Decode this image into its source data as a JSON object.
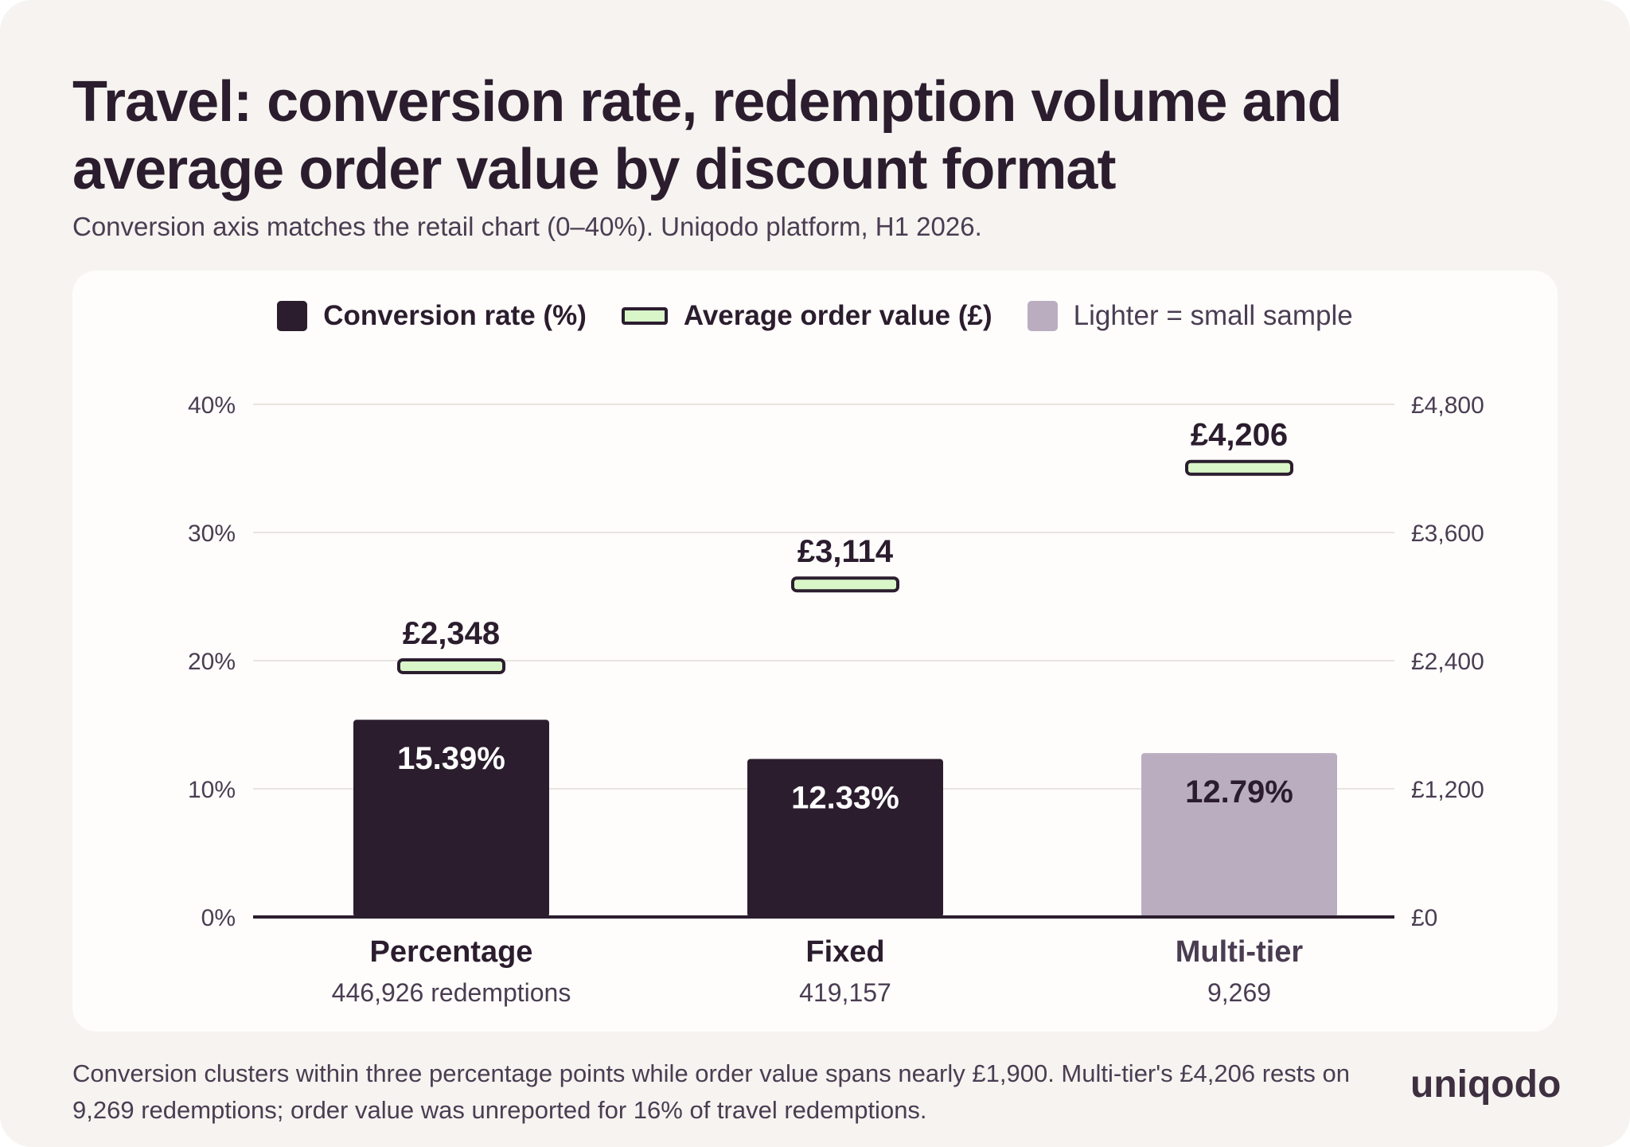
{
  "title": "Travel: conversion rate, redemption volume and average order value by discount format",
  "subtitle": "Conversion axis matches the retail chart (0–40%). Uniqodo platform, H1 2026.",
  "legend": [
    {
      "label": "Conversion rate (%)",
      "kind": "bar",
      "color": "#2b1d2e"
    },
    {
      "label": "Average order value (£)",
      "kind": "marker",
      "color": "#d9f6c9"
    },
    {
      "label": "Lighter = small sample",
      "kind": "bar",
      "color": "#bbadc0"
    }
  ],
  "chart_data": {
    "type": "bar",
    "categories": [
      "Percentage",
      "Fixed",
      "Multi-tier"
    ],
    "sublabels": [
      "446,926 redemptions",
      "419,157",
      "9,269"
    ],
    "series": [
      {
        "name": "Conversion rate (%)",
        "axis": "left",
        "values": [
          15.39,
          12.33,
          12.79
        ],
        "value_labels": [
          "15.39%",
          "12.33%",
          "12.79%"
        ],
        "small_sample": [
          false,
          false,
          true
        ]
      },
      {
        "name": "Average order value (£)",
        "axis": "right",
        "mark": "marker",
        "values": [
          2348,
          3114,
          4206
        ],
        "value_labels": [
          "£2,348",
          "£3,114",
          "£4,206"
        ]
      }
    ],
    "y_left": {
      "ylim": [
        0,
        40
      ],
      "ticks": [
        0,
        10,
        20,
        30,
        40
      ],
      "tick_labels": [
        "0%",
        "10%",
        "20%",
        "30%",
        "40%"
      ]
    },
    "y_right": {
      "ylim": [
        0,
        4800
      ],
      "ticks": [
        0,
        1200,
        2400,
        3600,
        4800
      ],
      "tick_labels": [
        "£0",
        "£1,200",
        "£2,400",
        "£3,600",
        "£4,800"
      ]
    },
    "grid": true,
    "legend_position": "top-center"
  },
  "colors": {
    "bar": "#2b1d2e",
    "bar_small_sample": "#bbadc0",
    "marker_fill": "#d9f6c9",
    "marker_stroke": "#2b1d2e",
    "grid": "#e8e4e0",
    "axis": "#2b1d2e"
  },
  "footnote": "Conversion clusters within three percentage points while order value spans nearly £1,900. Multi-tier's £4,206 rests on 9,269 redemptions; order value was unreported for 16% of travel redemptions.",
  "brand": {
    "logo_text": "uniqodo"
  }
}
